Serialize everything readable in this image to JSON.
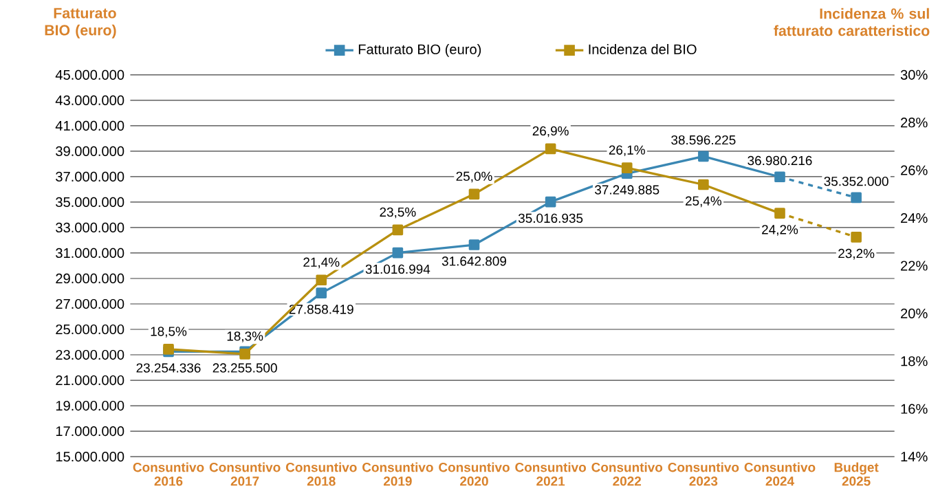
{
  "chart_data": {
    "type": "line",
    "ylabel": "Fatturato BIO (euro)",
    "y2label": "Incidenza % sul fatturato caratteristico",
    "categories": [
      "Consuntivo 2016",
      "Consuntivo 2017",
      "Consuntivo 2018",
      "Consuntivo 2019",
      "Consuntivo 2020",
      "Consuntivo 2021",
      "Consuntivo 2022",
      "Consuntivo 2023",
      "Consuntivo 2024",
      "Budget 2025"
    ],
    "series": [
      {
        "name": "Fatturato BIO (euro)",
        "color": "#3a87b3",
        "line_style": "solid",
        "values": [
          23254336,
          23255500,
          27858419,
          31016994,
          31642809,
          35016935,
          37249885,
          38596225,
          36980216,
          null
        ],
        "value_labels": [
          "23.254.336",
          "23.255.500",
          "27.858.419",
          "31.016.994",
          "31.642.809",
          "35.016.935",
          "37.249.885",
          "38.596.225",
          "36.980.216",
          null
        ]
      },
      {
        "color": "#3a87b3",
        "line_style": "dashed",
        "values": [
          null,
          null,
          null,
          null,
          null,
          null,
          null,
          null,
          null,
          35352000
        ],
        "value_labels": [
          null,
          null,
          null,
          null,
          null,
          null,
          null,
          null,
          null,
          "35.352.000"
        ]
      },
      {
        "name": "Incidenza del BIO",
        "color": "#b8900f",
        "axis": "y2",
        "line_style": "solid",
        "values": [
          18.5,
          18.3,
          21.4,
          23.5,
          25.0,
          26.9,
          26.1,
          25.4,
          24.2,
          null
        ],
        "value_labels": [
          "18,5%",
          "18,3%",
          "21,4%",
          "23,5%",
          "25,0%",
          "26,9%",
          "26,1%",
          "25,4%",
          "24,2%",
          null
        ]
      },
      {
        "color": "#b8900f",
        "axis": "y2",
        "line_style": "dashed",
        "values": [
          null,
          null,
          null,
          null,
          null,
          null,
          null,
          null,
          null,
          23.2
        ],
        "value_labels": [
          null,
          null,
          null,
          null,
          null,
          null,
          null,
          null,
          null,
          "23,2%"
        ]
      }
    ],
    "ylim": [
      15000000,
      45000000
    ],
    "yticks": [
      {
        "value": 15000000,
        "label": "15.000.000"
      },
      {
        "value": 17000000,
        "label": "17.000.000"
      },
      {
        "value": 19000000,
        "label": "19.000.000"
      },
      {
        "value": 21000000,
        "label": "21.000.000"
      },
      {
        "value": 23000000,
        "label": "23.000.000"
      },
      {
        "value": 25000000,
        "label": "25.000.000"
      },
      {
        "value": 27000000,
        "label": "27.000.000"
      },
      {
        "value": 29000000,
        "label": "29.000.000"
      },
      {
        "value": 31000000,
        "label": "31.000.000"
      },
      {
        "value": 33000000,
        "label": "33.000.000"
      },
      {
        "value": 35000000,
        "label": "35.000.000"
      },
      {
        "value": 37000000,
        "label": "37.000.000"
      },
      {
        "value": 39000000,
        "label": "39.000.000"
      },
      {
        "value": 41000000,
        "label": "41.000.000"
      },
      {
        "value": 43000000,
        "label": "43.000.000"
      },
      {
        "value": 45000000,
        "label": "45.000.000"
      }
    ],
    "y2lim": [
      14,
      30
    ],
    "y2ticks": [
      {
        "value": 14,
        "label": "14%"
      },
      {
        "value": 16,
        "label": "16%"
      },
      {
        "value": 18,
        "label": "18%"
      },
      {
        "value": 20,
        "label": "20%"
      },
      {
        "value": 22,
        "label": "22%"
      },
      {
        "value": 24,
        "label": "24%"
      },
      {
        "value": 26,
        "label": "26%"
      },
      {
        "value": 28,
        "label": "28%"
      },
      {
        "value": 30,
        "label": "30%"
      }
    ],
    "grid": "y",
    "legend": "top",
    "marker": "square"
  }
}
